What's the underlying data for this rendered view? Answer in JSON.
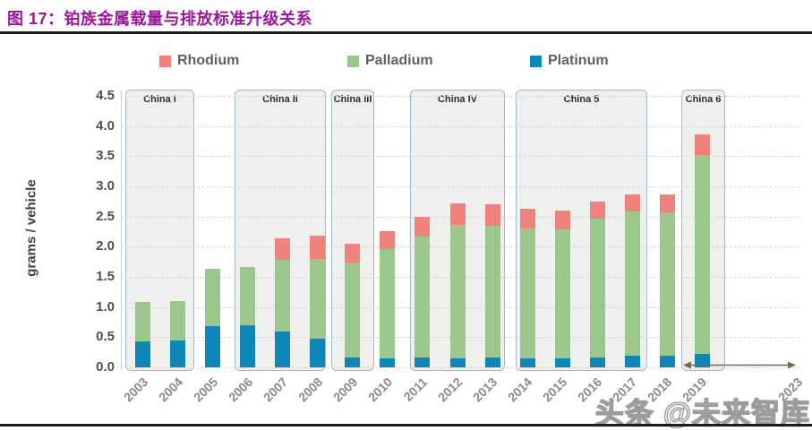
{
  "page": {
    "title": "图 17：铂族金属载量与排放标准升级关系",
    "title_color": "#9c169c",
    "watermark": "头条 @未来智库"
  },
  "legend": [
    {
      "label": "Rhodium",
      "color": "#f0827d"
    },
    {
      "label": "Palladium",
      "color": "#9cc78c"
    },
    {
      "label": "Platinum",
      "color": "#0e86b8"
    }
  ],
  "chart_data": {
    "type": "bar",
    "stacked": true,
    "title": "铂族金属载量与排放标准升级关系",
    "ylabel": "grams / vehicle",
    "ylim": [
      0,
      4.5
    ],
    "ytick_step": 0.5,
    "grid": "horizontal-dashed",
    "legend_position": "top",
    "categories": [
      "2003",
      "2004",
      "2005",
      "2006",
      "2007",
      "2008",
      "2009",
      "2010",
      "2011",
      "2012",
      "2013",
      "2014",
      "2015",
      "2016",
      "2017",
      "2018",
      "2019"
    ],
    "series": [
      {
        "name": "Platinum",
        "color": "#0e86b8",
        "values": [
          0.43,
          0.45,
          0.68,
          0.7,
          0.6,
          0.47,
          0.17,
          0.15,
          0.17,
          0.15,
          0.16,
          0.15,
          0.15,
          0.17,
          0.2,
          0.2,
          0.22
        ]
      },
      {
        "name": "Palladium",
        "color": "#9cc78c",
        "values": [
          0.65,
          0.65,
          0.95,
          0.97,
          1.18,
          1.33,
          1.57,
          1.81,
          2.0,
          2.21,
          2.18,
          2.15,
          2.13,
          2.29,
          2.38,
          2.37,
          3.3
        ]
      },
      {
        "name": "Rhodium",
        "color": "#f0827d",
        "values": [
          0.0,
          0.0,
          0.0,
          0.0,
          0.36,
          0.38,
          0.31,
          0.3,
          0.33,
          0.36,
          0.36,
          0.33,
          0.32,
          0.29,
          0.28,
          0.3,
          0.34
        ]
      }
    ],
    "stages": [
      {
        "label": "China I",
        "from": "2003",
        "to": "2004"
      },
      {
        "label": "China II",
        "from": "2006",
        "to": "2008"
      },
      {
        "label": "China III",
        "from": "2009",
        "to": "2009"
      },
      {
        "label": "China IV",
        "from": "2011",
        "to": "2013"
      },
      {
        "label": "China 5",
        "from": "2014",
        "to": "2017"
      },
      {
        "label": "China 6",
        "from": "2019",
        "to": "2023"
      }
    ],
    "extra_x_label": "2023",
    "annotation_arrow": {
      "type": "double-headed",
      "from_year": "2019",
      "to_label": "2023",
      "at_value": 0.05
    }
  }
}
